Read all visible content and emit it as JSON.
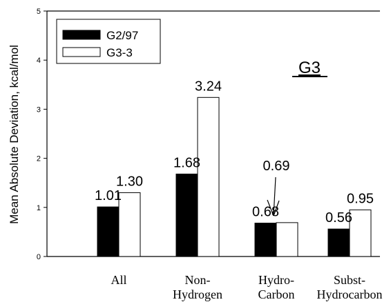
{
  "chart_data": {
    "type": "bar",
    "title": "G3",
    "ylabel": "Mean Absolute Deviation, kcal/mol",
    "xlabel": "",
    "ylim": [
      0,
      5
    ],
    "yticks": [
      "0",
      "1",
      "2",
      "3",
      "4",
      "5"
    ],
    "categories": [
      [
        "All"
      ],
      [
        "Non-",
        "Hydrogen"
      ],
      [
        "Hydro-",
        "Carbon"
      ],
      [
        "Subst-",
        "Hydrocarbon"
      ]
    ],
    "series": [
      {
        "name": "G2/97",
        "values": [
          1.01,
          1.68,
          0.68,
          0.56
        ],
        "labels": [
          "1.01",
          "1.68",
          "0.68",
          "0.56"
        ],
        "color": "#000000"
      },
      {
        "name": "G3-3",
        "values": [
          1.3,
          3.24,
          0.69,
          0.95
        ],
        "labels": [
          "1.30",
          "3.24",
          "0.69",
          "0.95"
        ],
        "color": "#ffffff"
      }
    ],
    "legend_position": "top-left",
    "grid": false
  }
}
